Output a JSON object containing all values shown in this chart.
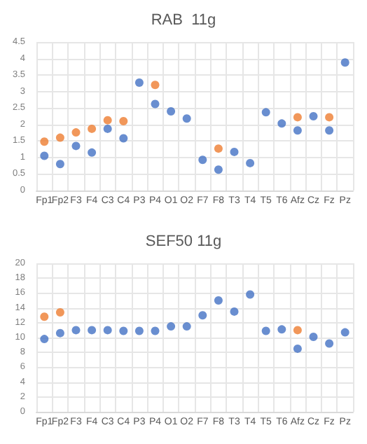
{
  "chart_data": [
    {
      "type": "scatter",
      "title": "RAB  11g",
      "categories": [
        "Fp1",
        "Fp2",
        "F3",
        "F4",
        "C3",
        "C4",
        "P3",
        "P4",
        "O1",
        "O2",
        "F7",
        "F8",
        "T3",
        "T4",
        "T5",
        "T6",
        "Afz",
        "Cz",
        "Fz",
        "Pz"
      ],
      "series": [
        {
          "color": "#4472c4",
          "values": [
            1.05,
            0.8,
            1.35,
            1.15,
            1.87,
            1.58,
            3.27,
            2.62,
            2.4,
            2.18,
            0.93,
            0.63,
            1.17,
            0.83,
            2.37,
            2.03,
            1.82,
            2.25,
            1.82,
            3.88
          ]
        },
        {
          "color": "#ed7d31",
          "values": [
            1.48,
            1.6,
            1.76,
            1.87,
            2.13,
            2.1,
            null,
            3.2,
            null,
            null,
            null,
            1.27,
            null,
            null,
            null,
            null,
            2.22,
            null,
            2.22,
            null
          ]
        }
      ],
      "ylim": [
        0,
        4.5
      ],
      "yticks": [
        0,
        0.5,
        1,
        1.5,
        2,
        2.5,
        3,
        3.5,
        4,
        4.5
      ],
      "grid": true,
      "marker": "circle"
    },
    {
      "type": "scatter",
      "title": "SEF50 11g",
      "categories": [
        "Fp1",
        "Fp2",
        "F3",
        "F4",
        "C3",
        "C4",
        "P3",
        "P4",
        "O1",
        "O2",
        "F7",
        "F8",
        "T3",
        "T4",
        "T5",
        "T6",
        "Afz",
        "Cz",
        "Fz",
        "Pz"
      ],
      "series": [
        {
          "color": "#4472c4",
          "values": [
            9.8,
            10.6,
            11,
            11,
            11,
            10.9,
            10.9,
            10.9,
            11.5,
            11.5,
            13,
            15,
            13.5,
            15.8,
            10.9,
            11.1,
            8.5,
            10.1,
            9.2,
            10.7
          ]
        },
        {
          "color": "#ed7d31",
          "values": [
            12.8,
            13.4,
            null,
            null,
            null,
            null,
            null,
            null,
            null,
            null,
            null,
            null,
            null,
            null,
            null,
            null,
            11,
            null,
            null,
            null
          ]
        }
      ],
      "ylim": [
        0,
        20
      ],
      "yticks": [
        0,
        2,
        4,
        6,
        8,
        10,
        12,
        14,
        16,
        18,
        20
      ],
      "grid": true,
      "marker": "circle"
    }
  ]
}
